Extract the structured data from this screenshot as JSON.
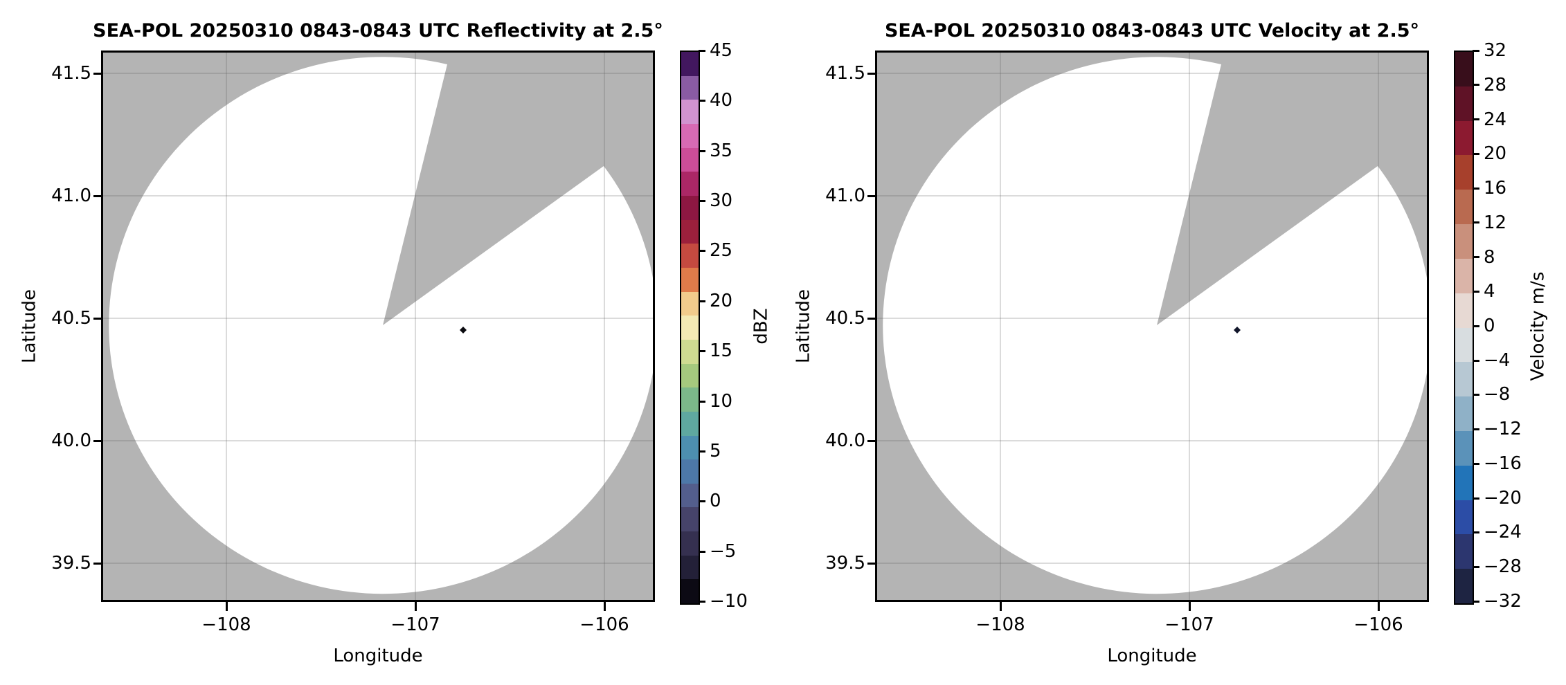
{
  "figure": {
    "background_color": "#ffffff",
    "plot_background_color": "#b4b4b4",
    "coverage_fill_color": "#ffffff",
    "gridline_color": "rgba(90,90,90,0.22)",
    "echo_marker_color": "#0a0a0f"
  },
  "panels": [
    {
      "id": "reflectivity",
      "title": "SEA-POL 20250310 0843-0843 UTC Reflectivity at 2.5°",
      "xlabel": "Longitude",
      "ylabel": "Latitude",
      "xticks": [
        "−108",
        "−107",
        "−106"
      ],
      "yticks": [
        "41.5",
        "41.0",
        "40.5",
        "40.0",
        "39.5"
      ],
      "colorbar": {
        "label": "dBZ",
        "ticks": [
          "45",
          "40",
          "35",
          "30",
          "25",
          "20",
          "15",
          "10",
          "5",
          "0",
          "−5",
          "−10"
        ],
        "colors_top_to_bottom": [
          "#42175f",
          "#8a5ba3",
          "#d193d0",
          "#d76ab4",
          "#cc4d98",
          "#ab2766",
          "#8d1742",
          "#9c203c",
          "#c54a40",
          "#e07b4a",
          "#f2cb8c",
          "#f4e9b4",
          "#cfdb91",
          "#a5c97e",
          "#7cb88a",
          "#5fa8a0",
          "#4d8fb0",
          "#4d78a8",
          "#535e8d",
          "#46436a",
          "#353050",
          "#232038",
          "#0c0a14"
        ]
      }
    },
    {
      "id": "velocity",
      "title": "SEA-POL 20250310 0843-0843 UTC Velocity at 2.5°",
      "xlabel": "Longitude",
      "ylabel": "Latitude",
      "xticks": [
        "−108",
        "−107",
        "−106"
      ],
      "yticks": [
        "41.5",
        "41.0",
        "40.5",
        "40.0",
        "39.5"
      ],
      "colorbar": {
        "label": "Velocity m/s",
        "ticks": [
          "32",
          "28",
          "24",
          "20",
          "16",
          "12",
          "8",
          "4",
          "0",
          "−4",
          "−8",
          "−12",
          "−16",
          "−20",
          "−24",
          "−28",
          "−32"
        ],
        "colors_top_to_bottom": [
          "#380e1b",
          "#5f1226",
          "#8c1a30",
          "#a7402c",
          "#b96a50",
          "#c9907c",
          "#dab4a8",
          "#e7d9d3",
          "#d8dde0",
          "#b7c8d3",
          "#8fb1c7",
          "#5b92b9",
          "#2274b8",
          "#2c4da6",
          "#2c366f",
          "#1e2442"
        ]
      }
    }
  ],
  "chart_data": [
    {
      "type": "radar_ppi",
      "title": "SEA-POL 20250310 0843-0843 UTC Reflectivity at 2.5°",
      "field": "Reflectivity",
      "elevation_deg": 2.5,
      "xlabel": "Longitude",
      "ylabel": "Latitude",
      "xlim": [
        -108.66,
        -105.73
      ],
      "ylim": [
        39.34,
        41.59
      ],
      "xticks": [
        -108,
        -107,
        -106
      ],
      "yticks": [
        39.5,
        40.0,
        40.5,
        41.0,
        41.5
      ],
      "grid": true,
      "radar_site": {
        "lon": -107.17,
        "lat": 40.47
      },
      "max_range_deg": {
        "lon_radius": 1.45,
        "lat_radius": 1.1
      },
      "coverage": "full circle except missing wedge",
      "missing_sector_azimuth_deg": [
        14,
        54
      ],
      "colorbar": {
        "label": "dBZ",
        "min": -10,
        "max": 45,
        "tick_step": 5
      },
      "echoes": [
        {
          "lon": -106.75,
          "lat": 40.45,
          "value_dBZ": -10,
          "note": "single near-black diamond echo"
        }
      ]
    },
    {
      "type": "radar_ppi",
      "title": "SEA-POL 20250310 0843-0843 UTC Velocity at 2.5°",
      "field": "Velocity",
      "elevation_deg": 2.5,
      "xlabel": "Longitude",
      "ylabel": "Latitude",
      "xlim": [
        -108.66,
        -105.73
      ],
      "ylim": [
        39.34,
        41.59
      ],
      "xticks": [
        -108,
        -107,
        -106
      ],
      "yticks": [
        39.5,
        40.0,
        40.5,
        41.0,
        41.5
      ],
      "grid": true,
      "radar_site": {
        "lon": -107.17,
        "lat": 40.47
      },
      "max_range_deg": {
        "lon_radius": 1.45,
        "lat_radius": 1.1
      },
      "coverage": "full circle except missing wedge",
      "missing_sector_azimuth_deg": [
        14,
        54
      ],
      "colorbar": {
        "label": "Velocity m/s",
        "min": -32,
        "max": 32,
        "tick_step": 4
      },
      "echoes": [
        {
          "lon": -106.75,
          "lat": 40.45,
          "value_ms": -30,
          "note": "single dark diamond echo"
        }
      ]
    }
  ]
}
